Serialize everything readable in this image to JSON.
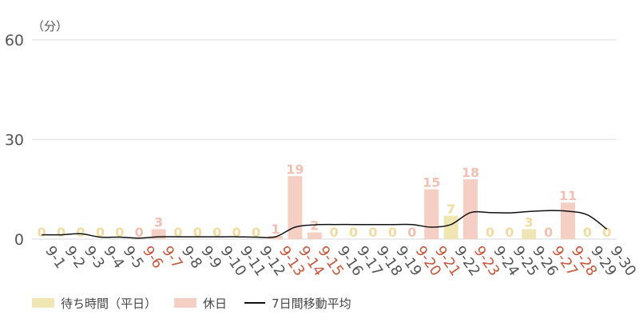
{
  "chart_data": {
    "type": "bar",
    "unit_label": "（分）",
    "ylim": [
      0,
      60
    ],
    "yticks": [
      "0",
      "30",
      "60"
    ],
    "grid": true,
    "categories": [
      "9-1",
      "9-2",
      "9-3",
      "9-4",
      "9-5",
      "9-6",
      "9-7",
      "9-8",
      "9-9",
      "9-10",
      "9-11",
      "9-12",
      "9-13",
      "9-14",
      "9-15",
      "9-16",
      "9-17",
      "9-18",
      "9-19",
      "9-20",
      "9-21",
      "9-22",
      "9-23",
      "9-24",
      "9-25",
      "9-26",
      "9-27",
      "9-28",
      "9-29",
      "9-30"
    ],
    "holiday_flags": [
      false,
      false,
      false,
      false,
      false,
      true,
      true,
      false,
      false,
      false,
      false,
      false,
      true,
      true,
      true,
      false,
      false,
      false,
      false,
      true,
      true,
      false,
      true,
      false,
      false,
      false,
      true,
      true,
      false,
      false
    ],
    "values": [
      0,
      0,
      0,
      0,
      0,
      0,
      3,
      0,
      0,
      0,
      0,
      0,
      1,
      19,
      2,
      0,
      0,
      0,
      0,
      0,
      15,
      7,
      18,
      0,
      0,
      3,
      0,
      11,
      0,
      0
    ],
    "moving_average": [
      1.3,
      1.3,
      1.6,
      0.6,
      0.6,
      0.3,
      0.7,
      0.7,
      0.7,
      0.7,
      0.7,
      0.6,
      0.7,
      3.6,
      4.3,
      4.4,
      4.4,
      4.4,
      4.4,
      4.4,
      3.6,
      4.4,
      8.0,
      8.0,
      7.9,
      8.3,
      8.6,
      8.4,
      7.3,
      3.0
    ],
    "legend_position": "bottom-left",
    "legend": {
      "weekday_label": "待ち時間（平日）",
      "holiday_label": "休日",
      "average_label": "7日間移動平均"
    }
  },
  "colors": {
    "weekday_bar": "#f0e6b4",
    "holiday_bar": "#f5cfc3",
    "weekday_value_label": "#f0dca0",
    "holiday_value_label": "#f0c0b0",
    "holiday_tick": "#c9573a",
    "weekday_tick": "#555555",
    "average_line": "#111111",
    "grid": "#d9d9d9"
  }
}
